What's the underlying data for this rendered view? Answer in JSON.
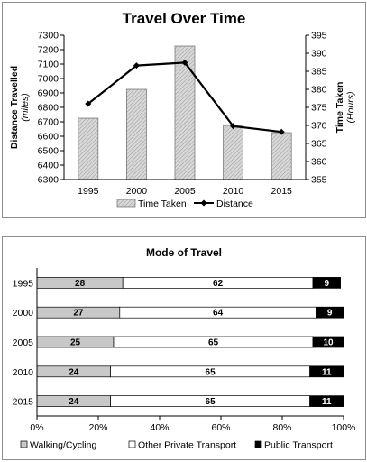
{
  "chart_data": [
    {
      "type": "bar+line",
      "title": "Travel Over Time",
      "categories": [
        "1995",
        "2000",
        "2005",
        "2010",
        "2015"
      ],
      "series": [
        {
          "name": "Time Taken",
          "type": "bar",
          "axis": "right",
          "values": [
            372,
            380,
            392,
            370,
            368
          ]
        },
        {
          "name": "Distance",
          "type": "line",
          "axis": "left",
          "values": [
            6825,
            7090,
            7110,
            6670,
            6630
          ]
        }
      ],
      "ylabel": "Distance Travelled",
      "ylabel_unit": "(miles)",
      "y2label": "Time Taken",
      "y2label_unit": "(Hours)",
      "ylim": [
        6300,
        7300
      ],
      "yticks": [
        "6300",
        "6400",
        "6500",
        "6600",
        "6700",
        "6800",
        "6900",
        "7000",
        "7100",
        "7200",
        "7300"
      ],
      "y2lim": [
        355,
        395
      ],
      "y2ticks": [
        "355",
        "360",
        "365",
        "370",
        "375",
        "380",
        "385",
        "390",
        "395"
      ],
      "legend_position": "bottom",
      "grid": false
    },
    {
      "type": "stacked-bar-horizontal-100",
      "title": "Mode of Travel",
      "categories": [
        "1995",
        "2000",
        "2005",
        "2010",
        "2015"
      ],
      "series": [
        {
          "name": "Walking/Cycling",
          "values": [
            28,
            27,
            25,
            24,
            24
          ],
          "labels": [
            "28",
            "27",
            "25",
            "24",
            "24"
          ]
        },
        {
          "name": "Other Private Transport",
          "values": [
            62,
            64,
            65,
            65,
            65
          ],
          "labels": [
            "62",
            "64",
            "65",
            "65",
            "65"
          ]
        },
        {
          "name": "Public Transport",
          "values": [
            9,
            9,
            10,
            11,
            11
          ],
          "labels": [
            "9",
            "9",
            "10",
            "11",
            "11"
          ]
        }
      ],
      "xlim": [
        0,
        100
      ],
      "xticks": [
        "0%",
        "20%",
        "40%",
        "60%",
        "80%",
        "100%"
      ],
      "legend_position": "bottom",
      "grid": false
    }
  ]
}
